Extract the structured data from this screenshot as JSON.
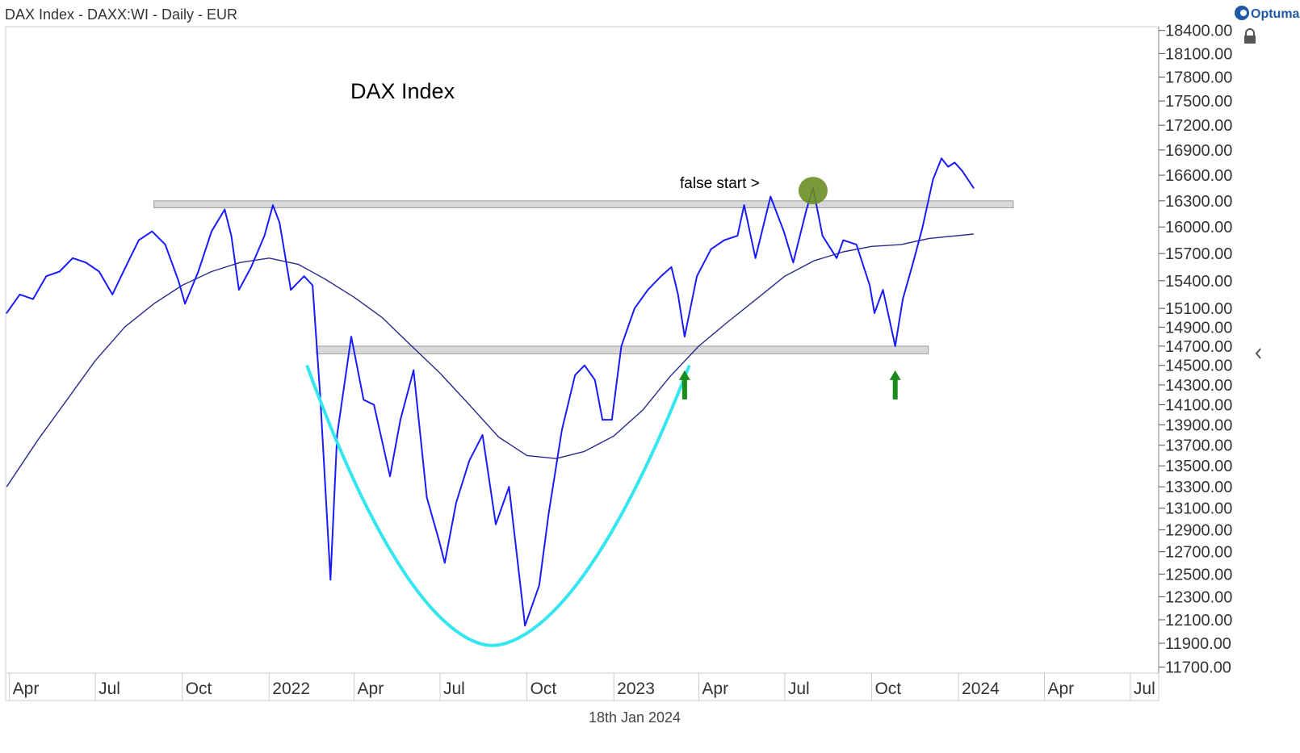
{
  "header": {
    "title": "DAX Index - DAXX:WI - Daily - EUR",
    "brand": "Optuma"
  },
  "footer": {
    "date": "18th Jan 2024"
  },
  "chart_data": {
    "type": "line",
    "title": "DAX Index",
    "y_scale": "log",
    "ylim": [
      11650,
      18450
    ],
    "x_range": [
      "2021-03-28",
      "2024-07-31"
    ],
    "grid": false,
    "legend": "none",
    "y_ticks": [
      {
        "value": 18400,
        "label": "18400.00"
      },
      {
        "value": 18100,
        "label": "18100.00"
      },
      {
        "value": 17800,
        "label": "17800.00"
      },
      {
        "value": 17500,
        "label": "17500.00"
      },
      {
        "value": 17200,
        "label": "17200.00"
      },
      {
        "value": 16900,
        "label": "16900.00"
      },
      {
        "value": 16600,
        "label": "16600.00"
      },
      {
        "value": 16300,
        "label": "16300.00"
      },
      {
        "value": 16000,
        "label": "16000.00"
      },
      {
        "value": 15700,
        "label": "15700.00"
      },
      {
        "value": 15400,
        "label": "15400.00"
      },
      {
        "value": 15100,
        "label": "15100.00"
      },
      {
        "value": 14900,
        "label": "14900.00"
      },
      {
        "value": 14700,
        "label": "14700.00"
      },
      {
        "value": 14500,
        "label": "14500.00"
      },
      {
        "value": 14300,
        "label": "14300.00"
      },
      {
        "value": 14100,
        "label": "14100.00"
      },
      {
        "value": 13900,
        "label": "13900.00"
      },
      {
        "value": 13700,
        "label": "13700.00"
      },
      {
        "value": 13500,
        "label": "13500.00"
      },
      {
        "value": 13300,
        "label": "13300.00"
      },
      {
        "value": 13100,
        "label": "13100.00"
      },
      {
        "value": 12900,
        "label": "12900.00"
      },
      {
        "value": 12700,
        "label": "12700.00"
      },
      {
        "value": 12500,
        "label": "12500.00"
      },
      {
        "value": 12300,
        "label": "12300.00"
      },
      {
        "value": 12100,
        "label": "12100.00"
      },
      {
        "value": 11900,
        "label": "11900.00"
      },
      {
        "value": 11700,
        "label": "11700.00"
      }
    ],
    "x_ticks": [
      {
        "date": "2021-04-01",
        "label": "Apr"
      },
      {
        "date": "2021-07-01",
        "label": "Jul"
      },
      {
        "date": "2021-10-01",
        "label": "Oct"
      },
      {
        "date": "2022-01-01",
        "label": "2022"
      },
      {
        "date": "2022-04-01",
        "label": "Apr"
      },
      {
        "date": "2022-07-01",
        "label": "Jul"
      },
      {
        "date": "2022-10-01",
        "label": "Oct"
      },
      {
        "date": "2023-01-01",
        "label": "2023"
      },
      {
        "date": "2023-04-01",
        "label": "Apr"
      },
      {
        "date": "2023-07-01",
        "label": "Jul"
      },
      {
        "date": "2023-10-01",
        "label": "Oct"
      },
      {
        "date": "2024-01-01",
        "label": "2024"
      },
      {
        "date": "2024-04-01",
        "label": "Apr"
      },
      {
        "date": "2024-07-01",
        "label": "Jul"
      }
    ],
    "series": [
      {
        "kind": "price",
        "color": "#1a1aff",
        "points": [
          [
            "2021-03-29",
            15050
          ],
          [
            "2021-04-12",
            15250
          ],
          [
            "2021-04-26",
            15200
          ],
          [
            "2021-05-10",
            15450
          ],
          [
            "2021-05-24",
            15500
          ],
          [
            "2021-06-07",
            15650
          ],
          [
            "2021-06-21",
            15600
          ],
          [
            "2021-07-05",
            15500
          ],
          [
            "2021-07-19",
            15250
          ],
          [
            "2021-08-02",
            15550
          ],
          [
            "2021-08-16",
            15850
          ],
          [
            "2021-08-30",
            15950
          ],
          [
            "2021-09-13",
            15800
          ],
          [
            "2021-09-27",
            15400
          ],
          [
            "2021-10-04",
            15150
          ],
          [
            "2021-10-18",
            15500
          ],
          [
            "2021-11-01",
            15950
          ],
          [
            "2021-11-15",
            16200
          ],
          [
            "2021-11-22",
            15900
          ],
          [
            "2021-11-30",
            15300
          ],
          [
            "2021-12-13",
            15550
          ],
          [
            "2021-12-27",
            15900
          ],
          [
            "2022-01-05",
            16250
          ],
          [
            "2022-01-12",
            16050
          ],
          [
            "2022-01-24",
            15300
          ],
          [
            "2022-02-07",
            15450
          ],
          [
            "2022-02-16",
            15350
          ],
          [
            "2022-02-24",
            14200
          ],
          [
            "2022-03-07",
            12450
          ],
          [
            "2022-03-14",
            13800
          ],
          [
            "2022-03-29",
            14800
          ],
          [
            "2022-04-11",
            14150
          ],
          [
            "2022-04-22",
            14100
          ],
          [
            "2022-05-09",
            13400
          ],
          [
            "2022-05-20",
            13950
          ],
          [
            "2022-06-03",
            14450
          ],
          [
            "2022-06-17",
            13200
          ],
          [
            "2022-06-30",
            12800
          ],
          [
            "2022-07-06",
            12600
          ],
          [
            "2022-07-18",
            13150
          ],
          [
            "2022-08-01",
            13550
          ],
          [
            "2022-08-15",
            13800
          ],
          [
            "2022-08-29",
            12950
          ],
          [
            "2022-09-12",
            13300
          ],
          [
            "2022-09-29",
            12050
          ],
          [
            "2022-10-14",
            12400
          ],
          [
            "2022-10-24",
            13050
          ],
          [
            "2022-11-07",
            13850
          ],
          [
            "2022-11-21",
            14400
          ],
          [
            "2022-12-01",
            14500
          ],
          [
            "2022-12-12",
            14350
          ],
          [
            "2022-12-20",
            13950
          ],
          [
            "2022-12-30",
            13950
          ],
          [
            "2023-01-09",
            14700
          ],
          [
            "2023-01-23",
            15100
          ],
          [
            "2023-02-06",
            15300
          ],
          [
            "2023-02-20",
            15450
          ],
          [
            "2023-03-03",
            15550
          ],
          [
            "2023-03-10",
            15250
          ],
          [
            "2023-03-17",
            14800
          ],
          [
            "2023-03-30",
            15450
          ],
          [
            "2023-04-14",
            15750
          ],
          [
            "2023-04-28",
            15850
          ],
          [
            "2023-05-12",
            15900
          ],
          [
            "2023-05-19",
            16250
          ],
          [
            "2023-05-31",
            15650
          ],
          [
            "2023-06-16",
            16350
          ],
          [
            "2023-06-30",
            15950
          ],
          [
            "2023-07-10",
            15600
          ],
          [
            "2023-07-24",
            16200
          ],
          [
            "2023-07-31",
            16450
          ],
          [
            "2023-08-10",
            15900
          ],
          [
            "2023-08-25",
            15650
          ],
          [
            "2023-09-01",
            15850
          ],
          [
            "2023-09-15",
            15800
          ],
          [
            "2023-09-29",
            15350
          ],
          [
            "2023-10-04",
            15050
          ],
          [
            "2023-10-13",
            15300
          ],
          [
            "2023-10-26",
            14700
          ],
          [
            "2023-11-03",
            15200
          ],
          [
            "2023-11-14",
            15600
          ],
          [
            "2023-11-24",
            16000
          ],
          [
            "2023-12-05",
            16550
          ],
          [
            "2023-12-14",
            16800
          ],
          [
            "2023-12-21",
            16700
          ],
          [
            "2023-12-28",
            16750
          ],
          [
            "2024-01-05",
            16650
          ],
          [
            "2024-01-17",
            16450
          ]
        ]
      },
      {
        "kind": "moving-average",
        "color": "#2a2a8a",
        "points": [
          [
            "2021-03-29",
            13300
          ],
          [
            "2021-05-01",
            13750
          ],
          [
            "2021-06-01",
            14150
          ],
          [
            "2021-07-01",
            14550
          ],
          [
            "2021-08-01",
            14900
          ],
          [
            "2021-09-01",
            15150
          ],
          [
            "2021-10-01",
            15350
          ],
          [
            "2021-11-01",
            15500
          ],
          [
            "2021-12-01",
            15600
          ],
          [
            "2022-01-01",
            15650
          ],
          [
            "2022-02-01",
            15580
          ],
          [
            "2022-03-01",
            15420
          ],
          [
            "2022-04-01",
            15220
          ],
          [
            "2022-05-01",
            15000
          ],
          [
            "2022-06-01",
            14700
          ],
          [
            "2022-07-01",
            14420
          ],
          [
            "2022-08-01",
            14100
          ],
          [
            "2022-09-01",
            13780
          ],
          [
            "2022-10-01",
            13600
          ],
          [
            "2022-11-01",
            13570
          ],
          [
            "2022-12-01",
            13640
          ],
          [
            "2023-01-01",
            13790
          ],
          [
            "2023-02-01",
            14050
          ],
          [
            "2023-03-01",
            14380
          ],
          [
            "2023-04-01",
            14700
          ],
          [
            "2023-05-01",
            14950
          ],
          [
            "2023-06-01",
            15200
          ],
          [
            "2023-07-01",
            15450
          ],
          [
            "2023-08-01",
            15620
          ],
          [
            "2023-09-01",
            15720
          ],
          [
            "2023-10-01",
            15780
          ],
          [
            "2023-11-01",
            15800
          ],
          [
            "2023-12-01",
            15870
          ],
          [
            "2024-01-17",
            15920
          ]
        ]
      }
    ],
    "support_bands": [
      {
        "from": "2021-09-01",
        "to": "2024-02-28",
        "low": 16220,
        "high": 16300
      },
      {
        "from": "2022-02-20",
        "to": "2023-11-30",
        "low": 14620,
        "high": 14700
      }
    ],
    "annotations": {
      "false_start_label": "false start >",
      "false_start_marker": {
        "date": "2023-07-31",
        "value": 16420,
        "color": "#6b8e23"
      },
      "green_arrows": [
        {
          "date": "2023-03-17",
          "value": 14300,
          "color": "#1a8c1a"
        },
        {
          "date": "2023-10-26",
          "value": 14300,
          "color": "#1a8c1a"
        }
      ],
      "cup_arc": {
        "from": "2022-02-10",
        "to": "2023-03-22",
        "bottom_date": "2022-08-25",
        "bottom_value": 11880,
        "top_value": 14500,
        "color": "#33e6f0"
      }
    }
  }
}
